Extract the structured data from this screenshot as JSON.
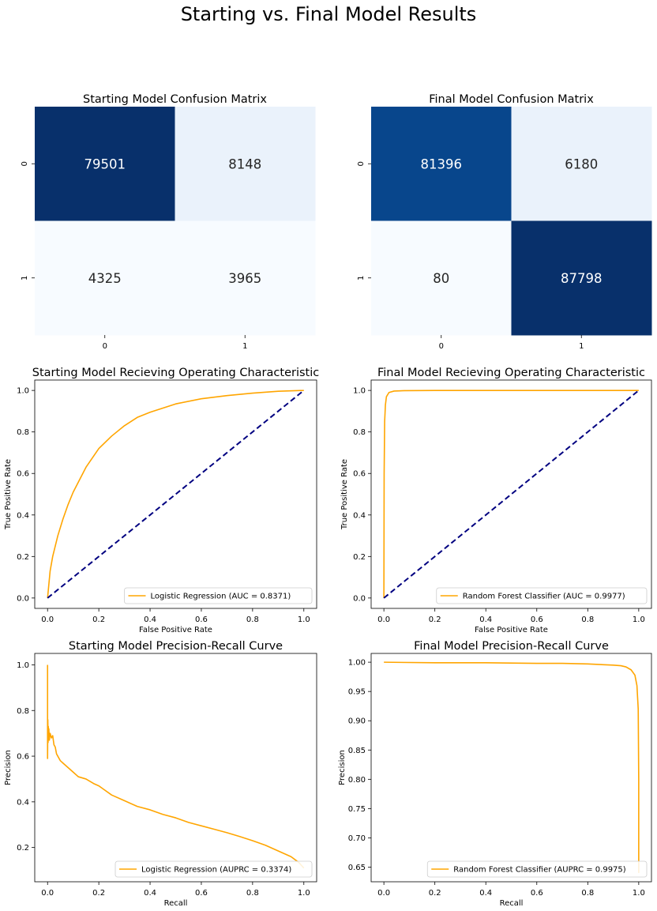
{
  "figure": {
    "suptitle": "Starting vs. Final Model Results"
  },
  "colors": {
    "curve": "#ffa500",
    "diagonal": "#000080",
    "cm_dark": "#08306b",
    "cm_dark2": "#08468c",
    "cm_light": "#eaf2fb",
    "cm_lightest": "#f7fbff",
    "cell_text_light": "#ffffff",
    "cell_text_dark": "#262626"
  },
  "chart_data": [
    {
      "id": "cm_start",
      "type": "heatmap",
      "title": "Starting Model Confusion Matrix",
      "row_labels": [
        "0",
        "1"
      ],
      "col_labels": [
        "0",
        "1"
      ],
      "values": [
        [
          79501,
          8148
        ],
        [
          4325,
          3965
        ]
      ],
      "cell_colors": [
        [
          "#08306b",
          "#eaf2fb"
        ],
        [
          "#f7fbff",
          "#f7fbff"
        ]
      ],
      "text_colors": [
        [
          "#ffffff",
          "#262626"
        ],
        [
          "#262626",
          "#262626"
        ]
      ],
      "colorbar": false
    },
    {
      "id": "cm_final",
      "type": "heatmap",
      "title": "Final Model Confusion Matrix",
      "row_labels": [
        "0",
        "1"
      ],
      "col_labels": [
        "0",
        "1"
      ],
      "values": [
        [
          81396,
          6180
        ],
        [
          80,
          87798
        ]
      ],
      "cell_colors": [
        [
          "#08468c",
          "#eaf2fb"
        ],
        [
          "#f7fbff",
          "#08306b"
        ]
      ],
      "text_colors": [
        [
          "#ffffff",
          "#262626"
        ],
        [
          "#262626",
          "#ffffff"
        ]
      ],
      "colorbar": false
    },
    {
      "id": "roc_start",
      "type": "line",
      "title": "Starting Model Recieving Operating Characteristic",
      "xlabel": "False Positive Rate",
      "ylabel": "True Positive Rate",
      "xlim": [
        -0.05,
        1.05
      ],
      "ylim": [
        -0.05,
        1.05
      ],
      "xticks": [
        0.0,
        0.2,
        0.4,
        0.6,
        0.8,
        1.0
      ],
      "yticks": [
        0.0,
        0.2,
        0.4,
        0.6,
        0.8,
        1.0
      ],
      "xtick_labels": [
        "0.0",
        "0.2",
        "0.4",
        "0.6",
        "0.8",
        "1.0"
      ],
      "ytick_labels": [
        "0.0",
        "0.2",
        "0.4",
        "0.6",
        "0.8",
        "1.0"
      ],
      "legend_position": "lower-right",
      "series": [
        {
          "name": "Logistic Regression (AUC = 0.8371)",
          "style": "solid",
          "x": [
            0.0,
            0.01,
            0.02,
            0.04,
            0.06,
            0.08,
            0.1,
            0.15,
            0.2,
            0.25,
            0.3,
            0.35,
            0.4,
            0.5,
            0.6,
            0.7,
            0.8,
            0.9,
            1.0
          ],
          "y": [
            0.0,
            0.13,
            0.2,
            0.3,
            0.38,
            0.45,
            0.51,
            0.63,
            0.72,
            0.78,
            0.83,
            0.87,
            0.895,
            0.935,
            0.96,
            0.975,
            0.987,
            0.996,
            1.0
          ]
        },
        {
          "style": "dashed",
          "x": [
            0.0,
            1.0
          ],
          "y": [
            0.0,
            1.0
          ]
        }
      ]
    },
    {
      "id": "roc_final",
      "type": "line",
      "title": "Final Model Recieving Operating Characteristic",
      "xlabel": "False Positive Rate",
      "ylabel": "True Positive Rate",
      "xlim": [
        -0.05,
        1.05
      ],
      "ylim": [
        -0.05,
        1.05
      ],
      "xticks": [
        0.0,
        0.2,
        0.4,
        0.6,
        0.8,
        1.0
      ],
      "yticks": [
        0.0,
        0.2,
        0.4,
        0.6,
        0.8,
        1.0
      ],
      "xtick_labels": [
        "0.0",
        "0.2",
        "0.4",
        "0.6",
        "0.8",
        "1.0"
      ],
      "ytick_labels": [
        "0.0",
        "0.2",
        "0.4",
        "0.6",
        "0.8",
        "1.0"
      ],
      "legend_position": "lower-right",
      "series": [
        {
          "name": "Random Forest Classifier (AUC = 0.9977)",
          "style": "solid",
          "x": [
            0.0,
            0.001,
            0.003,
            0.006,
            0.01,
            0.02,
            0.04,
            0.08,
            0.2,
            0.5,
            1.0
          ],
          "y": [
            0.0,
            0.6,
            0.85,
            0.93,
            0.97,
            0.99,
            0.997,
            0.999,
            1.0,
            1.0,
            1.0
          ]
        },
        {
          "style": "dashed",
          "x": [
            0.0,
            1.0
          ],
          "y": [
            0.0,
            1.0
          ]
        }
      ]
    },
    {
      "id": "pr_start",
      "type": "line",
      "title": "Starting Model Precision-Recall Curve",
      "xlabel": "Recall",
      "ylabel": "Precision",
      "xlim": [
        -0.05,
        1.05
      ],
      "ylim": [
        0.05,
        1.05
      ],
      "xticks": [
        0.0,
        0.2,
        0.4,
        0.6,
        0.8,
        1.0
      ],
      "yticks": [
        0.2,
        0.4,
        0.6,
        0.8,
        1.0
      ],
      "xtick_labels": [
        "0.0",
        "0.2",
        "0.4",
        "0.6",
        "0.8",
        "1.0"
      ],
      "ytick_labels": [
        "0.2",
        "0.4",
        "0.6",
        "0.8",
        "1.0"
      ],
      "legend_position": "lower-right",
      "series": [
        {
          "name": "Logistic Regression (AUPRC = 0.3374)",
          "style": "solid",
          "x": [
            0.0,
            0.0,
            0.001,
            0.002,
            0.003,
            0.004,
            0.005,
            0.007,
            0.01,
            0.015,
            0.02,
            0.025,
            0.03,
            0.035,
            0.04,
            0.05,
            0.06,
            0.08,
            0.1,
            0.12,
            0.15,
            0.18,
            0.2,
            0.25,
            0.3,
            0.35,
            0.4,
            0.45,
            0.5,
            0.55,
            0.6,
            0.65,
            0.7,
            0.75,
            0.8,
            0.85,
            0.9,
            0.95,
            0.98,
            1.0
          ],
          "y": [
            1.0,
            0.59,
            0.76,
            0.66,
            0.73,
            0.7,
            0.72,
            0.67,
            0.7,
            0.68,
            0.69,
            0.65,
            0.64,
            0.61,
            0.6,
            0.58,
            0.57,
            0.55,
            0.53,
            0.51,
            0.5,
            0.48,
            0.47,
            0.43,
            0.405,
            0.38,
            0.365,
            0.345,
            0.33,
            0.31,
            0.295,
            0.28,
            0.265,
            0.248,
            0.23,
            0.21,
            0.185,
            0.16,
            0.135,
            0.11
          ]
        }
      ]
    },
    {
      "id": "pr_final",
      "type": "line",
      "title": "Final Model Precision-Recall Curve",
      "xlabel": "Recall",
      "ylabel": "Precision",
      "xlim": [
        -0.05,
        1.05
      ],
      "ylim": [
        0.625,
        1.015
      ],
      "xticks": [
        0.0,
        0.2,
        0.4,
        0.6,
        0.8,
        1.0
      ],
      "yticks": [
        0.65,
        0.7,
        0.75,
        0.8,
        0.85,
        0.9,
        0.95,
        1.0
      ],
      "xtick_labels": [
        "0.0",
        "0.2",
        "0.4",
        "0.6",
        "0.8",
        "1.0"
      ],
      "ytick_labels": [
        "0.65",
        "0.70",
        "0.75",
        "0.80",
        "0.85",
        "0.90",
        "0.95",
        "1.00"
      ],
      "legend_position": "lower-right",
      "series": [
        {
          "name": "Random Forest Classifier (AUPRC = 0.9975)",
          "style": "solid",
          "x": [
            0.0,
            0.2,
            0.4,
            0.6,
            0.7,
            0.8,
            0.85,
            0.9,
            0.93,
            0.95,
            0.97,
            0.985,
            0.993,
            0.998,
            1.0,
            1.0
          ],
          "y": [
            1.0,
            0.999,
            0.999,
            0.998,
            0.998,
            0.997,
            0.996,
            0.995,
            0.994,
            0.992,
            0.987,
            0.978,
            0.96,
            0.92,
            0.8,
            0.64
          ]
        }
      ]
    }
  ]
}
